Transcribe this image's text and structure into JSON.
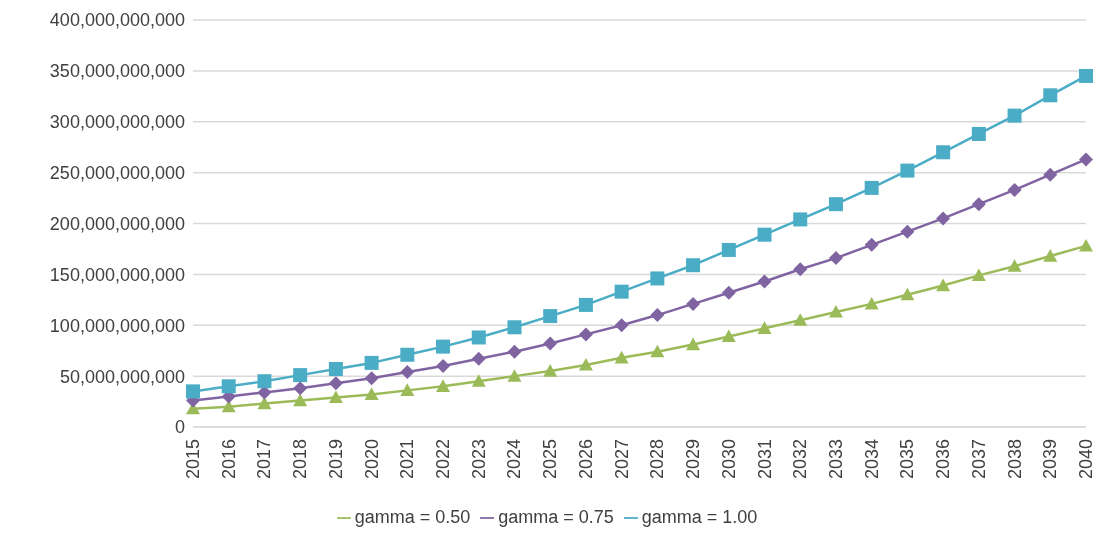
{
  "chart_data": {
    "type": "line",
    "categories": [
      "2015",
      "2016",
      "2017",
      "2018",
      "2019",
      "2020",
      "2021",
      "2022",
      "2023",
      "2024",
      "2025",
      "2026",
      "2027",
      "2028",
      "2029",
      "2030",
      "2031",
      "2032",
      "2033",
      "2034",
      "2035",
      "2036",
      "2037",
      "2038",
      "2039",
      "2040"
    ],
    "series": [
      {
        "name": "gamma = 0.50",
        "color": "#9bbb59",
        "marker": "triangle",
        "values": [
          18000000000,
          20000000000,
          23000000000,
          26000000000,
          29000000000,
          32000000000,
          36000000000,
          40000000000,
          45000000000,
          50000000000,
          55000000000,
          61000000000,
          68000000000,
          74000000000,
          81000000000,
          89000000000,
          97000000000,
          105000000000,
          113000000000,
          121000000000,
          130000000000,
          139000000000,
          149000000000,
          158000000000,
          168000000000,
          178000000000
        ]
      },
      {
        "name": "gamma = 0.75",
        "color": "#8064a2",
        "marker": "diamond",
        "values": [
          26000000000,
          30000000000,
          34000000000,
          38000000000,
          43000000000,
          48000000000,
          54000000000,
          60000000000,
          67000000000,
          74000000000,
          82000000000,
          91000000000,
          100000000000,
          110000000000,
          121000000000,
          132000000000,
          143000000000,
          155000000000,
          166000000000,
          179000000000,
          192000000000,
          205000000000,
          219000000000,
          233000000000,
          248000000000,
          263000000000
        ]
      },
      {
        "name": "gamma = 1.00",
        "color": "#4bacc6",
        "marker": "square",
        "values": [
          35000000000,
          40000000000,
          45000000000,
          51000000000,
          57000000000,
          63000000000,
          71000000000,
          79000000000,
          88000000000,
          98000000000,
          109000000000,
          120000000000,
          133000000000,
          146000000000,
          159000000000,
          174000000000,
          189000000000,
          204000000000,
          219000000000,
          235000000000,
          252000000000,
          270000000000,
          288000000000,
          306000000000,
          326000000000,
          345000000000
        ]
      }
    ],
    "ylim": [
      0,
      400000000000
    ],
    "yticks": [
      0,
      {
        "value": 50000000000,
        "label": "50,000,000,000"
      },
      {
        "value": 100000000000,
        "label": "100,000,000,000"
      },
      {
        "value": 150000000000,
        "label": "150,000,000,000"
      },
      {
        "value": 200000000000,
        "label": "200,000,000,000"
      },
      {
        "value": 250000000000,
        "label": "250,000,000,000"
      },
      {
        "value": 300000000000,
        "label": "300,000,000,000"
      },
      {
        "value": 350000000000,
        "label": "350,000,000,000"
      },
      {
        "value": 400000000000,
        "label": "400,000,000,000"
      }
    ],
    "grid": "y",
    "legend": "bottom",
    "line_style": "solid"
  }
}
